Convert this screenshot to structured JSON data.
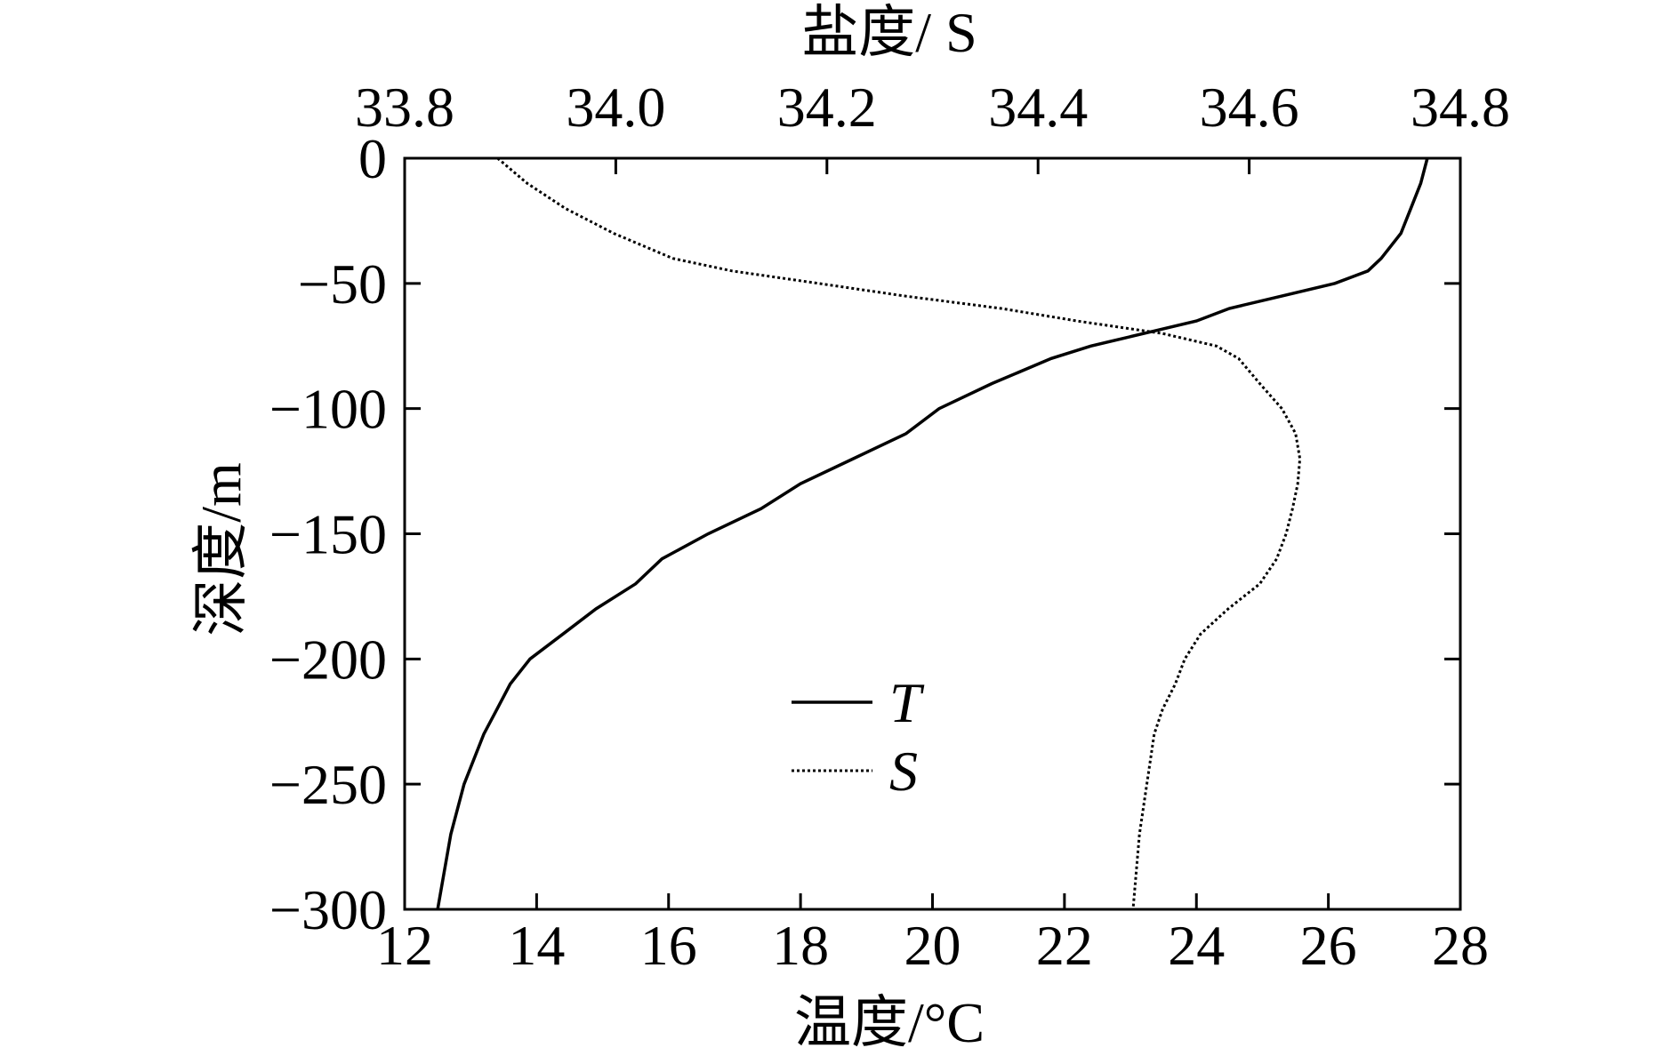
{
  "chart_data": {
    "type": "line",
    "x_label": "温度/°C",
    "x2_label": "盐度/ S",
    "y_label": "深度/m",
    "y": [
      0,
      -10,
      -20,
      -30,
      -40,
      -45,
      -50,
      -55,
      -60,
      -65,
      -70,
      -75,
      -80,
      -90,
      -100,
      -110,
      -120,
      -130,
      -140,
      -150,
      -160,
      -170,
      -180,
      -190,
      -200,
      -210,
      -220,
      -230,
      -250,
      -270,
      -300
    ],
    "series": [
      {
        "name": "T",
        "color": "#000000",
        "dash": "solid",
        "axis": "x",
        "values": [
          27.5,
          27.4,
          27.25,
          27.1,
          26.8,
          26.6,
          26.1,
          25.3,
          24.5,
          24.0,
          23.2,
          22.4,
          21.8,
          20.9,
          20.1,
          19.6,
          18.8,
          18.0,
          17.4,
          16.6,
          15.9,
          15.5,
          14.9,
          14.4,
          13.9,
          13.6,
          13.4,
          13.2,
          12.9,
          12.7,
          12.5
        ]
      },
      {
        "name": "S",
        "color": "#000000",
        "dash": "dotted",
        "axis": "x2",
        "values": [
          33.888,
          33.916,
          33.952,
          33.998,
          34.054,
          34.11,
          34.192,
          34.273,
          34.365,
          34.437,
          34.518,
          34.569,
          34.59,
          34.61,
          34.631,
          34.644,
          34.648,
          34.646,
          34.641,
          34.635,
          34.626,
          34.61,
          34.58,
          34.554,
          34.539,
          34.53,
          34.518,
          34.51,
          34.503,
          34.496,
          34.49
        ]
      }
    ],
    "xlim": [
      12,
      28
    ],
    "xticks": [
      12,
      14,
      16,
      18,
      20,
      22,
      24,
      26,
      28
    ],
    "x2lim": [
      33.8,
      34.8
    ],
    "x2ticks": [
      33.8,
      {
        "value": 34.0,
        "label": "34.0"
      },
      34.2,
      34.4,
      34.6,
      34.8
    ],
    "ylim": [
      -300,
      0
    ],
    "yticks": [
      0,
      {
        "value": -50,
        "label": "−50"
      },
      {
        "value": -100,
        "label": "−100"
      },
      {
        "value": -150,
        "label": "−150"
      },
      {
        "value": -200,
        "label": "−200"
      },
      {
        "value": -250,
        "label": "−250"
      },
      {
        "value": -300,
        "label": "−300"
      }
    ],
    "legend": "lower-center"
  }
}
